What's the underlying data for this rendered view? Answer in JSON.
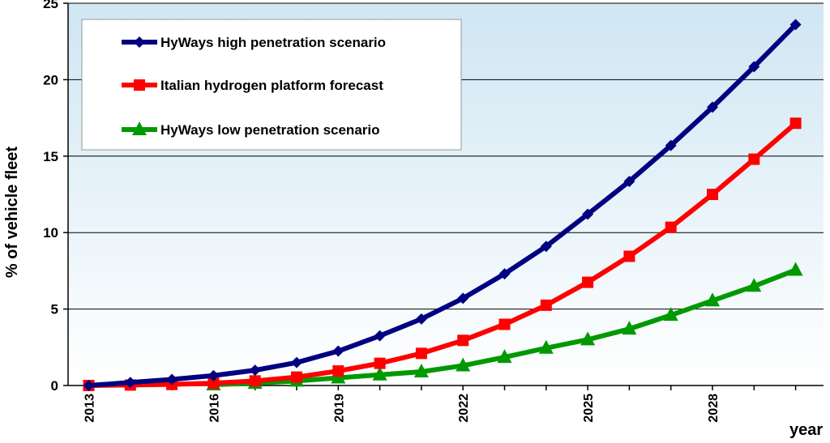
{
  "chart_data": {
    "type": "line",
    "ylabel": "% of vehicle fleet",
    "xlabel": "year",
    "x": [
      2013,
      2014,
      2015,
      2016,
      2017,
      2018,
      2019,
      2020,
      2021,
      2022,
      2023,
      2024,
      2025,
      2026,
      2027,
      2028,
      2029,
      2030
    ],
    "x_tick_labels": [
      "2013",
      "2016",
      "2019",
      "2022",
      "2025",
      "2028"
    ],
    "y_tick_labels": [
      "0",
      "5",
      "10",
      "15",
      "20",
      "25"
    ],
    "ylim": [
      0,
      25
    ],
    "xlim": [
      2013,
      2030.5
    ],
    "grid": "horizontal",
    "legend_position": "top-left",
    "series": [
      {
        "name": "HyWays high penetration scenario",
        "color": "#000080",
        "marker": "diamond",
        "x": [
          2013,
          2014,
          2015,
          2016,
          2017,
          2018,
          2019,
          2020,
          2021,
          2022,
          2023,
          2024,
          2025,
          2026,
          2027,
          2028,
          2029,
          2030
        ],
        "values": [
          0.0,
          0.2,
          0.4,
          0.65,
          1.0,
          1.5,
          2.25,
          3.25,
          4.35,
          5.7,
          7.3,
          9.1,
          11.2,
          13.35,
          15.7,
          18.2,
          20.85,
          23.6
        ]
      },
      {
        "name": "Italian hydrogen platform forecast",
        "color": "#ff0000",
        "marker": "square",
        "x": [
          2013,
          2014,
          2015,
          2016,
          2017,
          2018,
          2019,
          2020,
          2021,
          2022,
          2023,
          2024,
          2025,
          2026,
          2027,
          2028,
          2029,
          2030
        ],
        "values": [
          0.0,
          0.03,
          0.07,
          0.15,
          0.3,
          0.55,
          0.95,
          1.45,
          2.1,
          2.95,
          4.0,
          5.25,
          6.75,
          8.45,
          10.35,
          12.5,
          14.8,
          17.15
        ]
      },
      {
        "name": "HyWays low penetration scenario",
        "color": "#009900",
        "marker": "triangle",
        "x": [
          2016,
          2017,
          2018,
          2019,
          2020,
          2021,
          2022,
          2023,
          2024,
          2025,
          2026,
          2027,
          2028,
          2029,
          2030
        ],
        "values": [
          0.05,
          0.15,
          0.3,
          0.5,
          0.7,
          0.9,
          1.3,
          1.85,
          2.45,
          3.0,
          3.7,
          4.6,
          5.55,
          6.5,
          7.55
        ]
      }
    ]
  }
}
